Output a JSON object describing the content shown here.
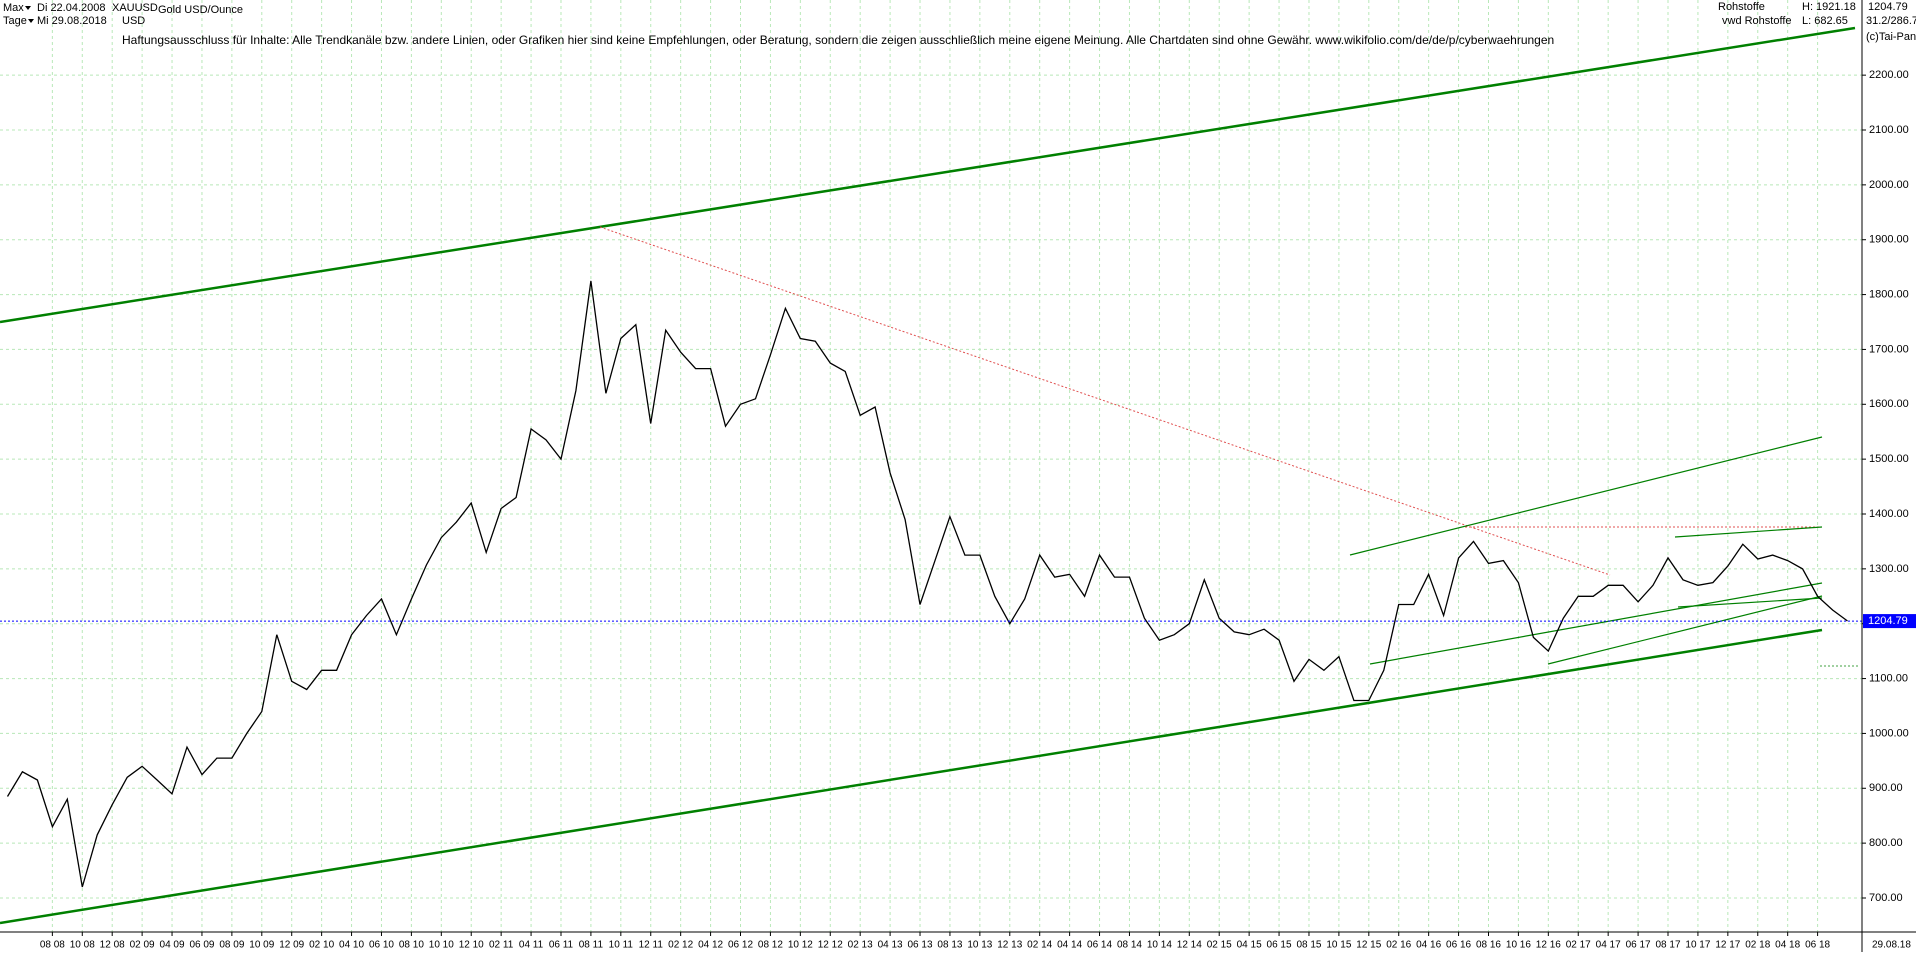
{
  "chart_data": {
    "type": "line",
    "title": "Gold USD/Ounce",
    "symbol": "XAUUSD",
    "currency": "USD",
    "range_label": "Max",
    "interval_label": "Tage",
    "start_date": "Di 22.04.2008",
    "end_date": "Mi 29.08.2018",
    "disclaimer": "Haftungsausschluss für Inhalte: Alle Trendkanäle bzw. andere Linien, oder Grafiken hier sind keine Empfehlungen, oder Beratung, sondern die zeigen ausschließlich meine eigene Meinung. Alle Chartdaten sind ohne Gewähr.  www.wikifolio.com/de/de/p/cyberwaehrungen",
    "source": "Rohstoffe",
    "source_detail": "vwd Rohstoffe",
    "high_label": "H: 1921.18",
    "low_label": "L: 682.65",
    "range_info": "31.2/286.7",
    "copyright": "(c)Tai-Pan",
    "end_label": "29.08.18",
    "last_value": 1204.79,
    "color": "#000000",
    "categories": [
      null,
      null,
      null,
      "08 08",
      null,
      "10 08",
      null,
      "12 08",
      null,
      "02 09",
      null,
      "04 09",
      null,
      "06 09",
      null,
      "08 09",
      null,
      "10 09",
      null,
      "12 09",
      null,
      "02 10",
      null,
      "04 10",
      null,
      "06 10",
      null,
      "08 10",
      null,
      "10 10",
      null,
      "12 10",
      null,
      "02 11",
      null,
      "04 11",
      null,
      "06 11",
      null,
      "08 11",
      null,
      "10 11",
      null,
      "12 11",
      null,
      "02 12",
      null,
      "04 12",
      null,
      "06 12",
      null,
      "08 12",
      null,
      "10 12",
      null,
      "12 12",
      null,
      "02 13",
      null,
      "04 13",
      null,
      "06 13",
      null,
      "08 13",
      null,
      "10 13",
      null,
      "12 13",
      null,
      "02 14",
      null,
      "04 14",
      null,
      "06 14",
      null,
      "08 14",
      null,
      "10 14",
      null,
      "12 14",
      null,
      "02 15",
      null,
      "04 15",
      null,
      "06 15",
      null,
      "08 15",
      null,
      "10 15",
      null,
      "12 15",
      null,
      "02 16",
      null,
      "04 16",
      null,
      "06 16",
      null,
      "08 16",
      null,
      "10 16",
      null,
      "12 16",
      null,
      "02 17",
      null,
      "04 17",
      null,
      "06 17",
      null,
      "08 17",
      null,
      "10 17",
      null,
      "12 17",
      null,
      "02 18",
      null,
      "04 18",
      null,
      "06 18",
      null,
      null
    ],
    "values": [
      885,
      930,
      915,
      830,
      880,
      720,
      815,
      870,
      920,
      940,
      915,
      890,
      975,
      925,
      955,
      955,
      1000,
      1040,
      1180,
      1095,
      1080,
      1115,
      1115,
      1180,
      1215,
      1245,
      1180,
      1245,
      1307,
      1357,
      1385,
      1420,
      1330,
      1410,
      1430,
      1555,
      1535,
      1500,
      1625,
      1825,
      1620,
      1720,
      1745,
      1565,
      1735,
      1695,
      1665,
      1665,
      1560,
      1600,
      1610,
      1690,
      1775,
      1720,
      1715,
      1675,
      1660,
      1580,
      1595,
      1475,
      1390,
      1235,
      1315,
      1395,
      1325,
      1325,
      1250,
      1200,
      1245,
      1325,
      1285,
      1290,
      1250,
      1325,
      1285,
      1285,
      1210,
      1170,
      1180,
      1200,
      1280,
      1210,
      1185,
      1180,
      1190,
      1170,
      1095,
      1135,
      1115,
      1140,
      1060,
      1060,
      1115,
      1235,
      1235,
      1290,
      1215,
      1320,
      1350,
      1310,
      1315,
      1275,
      1175,
      1150,
      1210,
      1250,
      1250,
      1270,
      1270,
      1240,
      1270,
      1320,
      1280,
      1270,
      1275,
      1305,
      1345,
      1318,
      1325,
      1315,
      1300,
      1250,
      1225,
      1205
    ],
    "ylim": [
      638,
      2337
    ],
    "yticks": [
      {
        "value": 700,
        "label": "700.00"
      },
      {
        "value": 800,
        "label": "800.00"
      },
      {
        "value": 900,
        "label": "900.00"
      },
      {
        "value": 1000,
        "label": "1000.00"
      },
      {
        "value": 1100,
        "label": "1100.00"
      },
      {
        "value": 1200,
        "label": "1200.00"
      },
      {
        "value": 1300,
        "label": "1300.00"
      },
      {
        "value": 1400,
        "label": "1400.00"
      },
      {
        "value": 1500,
        "label": "1500.00"
      },
      {
        "value": 1600,
        "label": "1600.00"
      },
      {
        "value": 1700,
        "label": "1700.00"
      },
      {
        "value": 1800,
        "label": "1800.00"
      },
      {
        "value": 1900,
        "label": "1900.00"
      },
      {
        "value": 2000,
        "label": "2000.00"
      },
      {
        "value": 2100,
        "label": "2100.00"
      },
      {
        "value": 2200,
        "label": "2200.00"
      }
    ],
    "grid": true
  }
}
